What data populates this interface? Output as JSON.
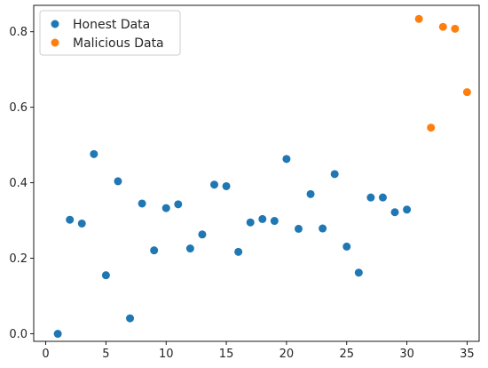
{
  "chart_data": {
    "type": "scatter",
    "title": "",
    "xlabel": "",
    "ylabel": "",
    "xlim": [
      -1,
      36
    ],
    "ylim": [
      -0.02,
      0.87
    ],
    "x_ticks": [
      0,
      5,
      10,
      15,
      20,
      25,
      30,
      35
    ],
    "y_ticks": [
      0.0,
      0.2,
      0.4,
      0.6,
      0.8
    ],
    "x_tick_labels": [
      "0",
      "5",
      "10",
      "15",
      "20",
      "25",
      "30",
      "35"
    ],
    "y_tick_labels": [
      "0.0",
      "0.2",
      "0.4",
      "0.6",
      "0.8"
    ],
    "grid": false,
    "legend_position": "top-left",
    "series": [
      {
        "name": "Honest Data",
        "color": "#1f77b4",
        "x": [
          1,
          2,
          3,
          4,
          5,
          6,
          7,
          8,
          9,
          10,
          11,
          12,
          13,
          14,
          15,
          16,
          17,
          18,
          19,
          20,
          21,
          22,
          23,
          24,
          25,
          26,
          27,
          28,
          29,
          30
        ],
        "y": [
          0.0,
          0.302,
          0.292,
          0.476,
          0.155,
          0.404,
          0.041,
          0.345,
          0.221,
          0.333,
          0.343,
          0.226,
          0.263,
          0.395,
          0.391,
          0.217,
          0.295,
          0.304,
          0.299,
          0.463,
          0.278,
          0.37,
          0.279,
          0.423,
          0.231,
          0.162,
          0.361,
          0.361,
          0.322,
          0.329
        ]
      },
      {
        "name": "Malicious Data",
        "color": "#ff7f0e",
        "x": [
          31,
          32,
          33,
          34,
          35
        ],
        "y": [
          0.834,
          0.546,
          0.813,
          0.808,
          0.64
        ]
      }
    ]
  }
}
